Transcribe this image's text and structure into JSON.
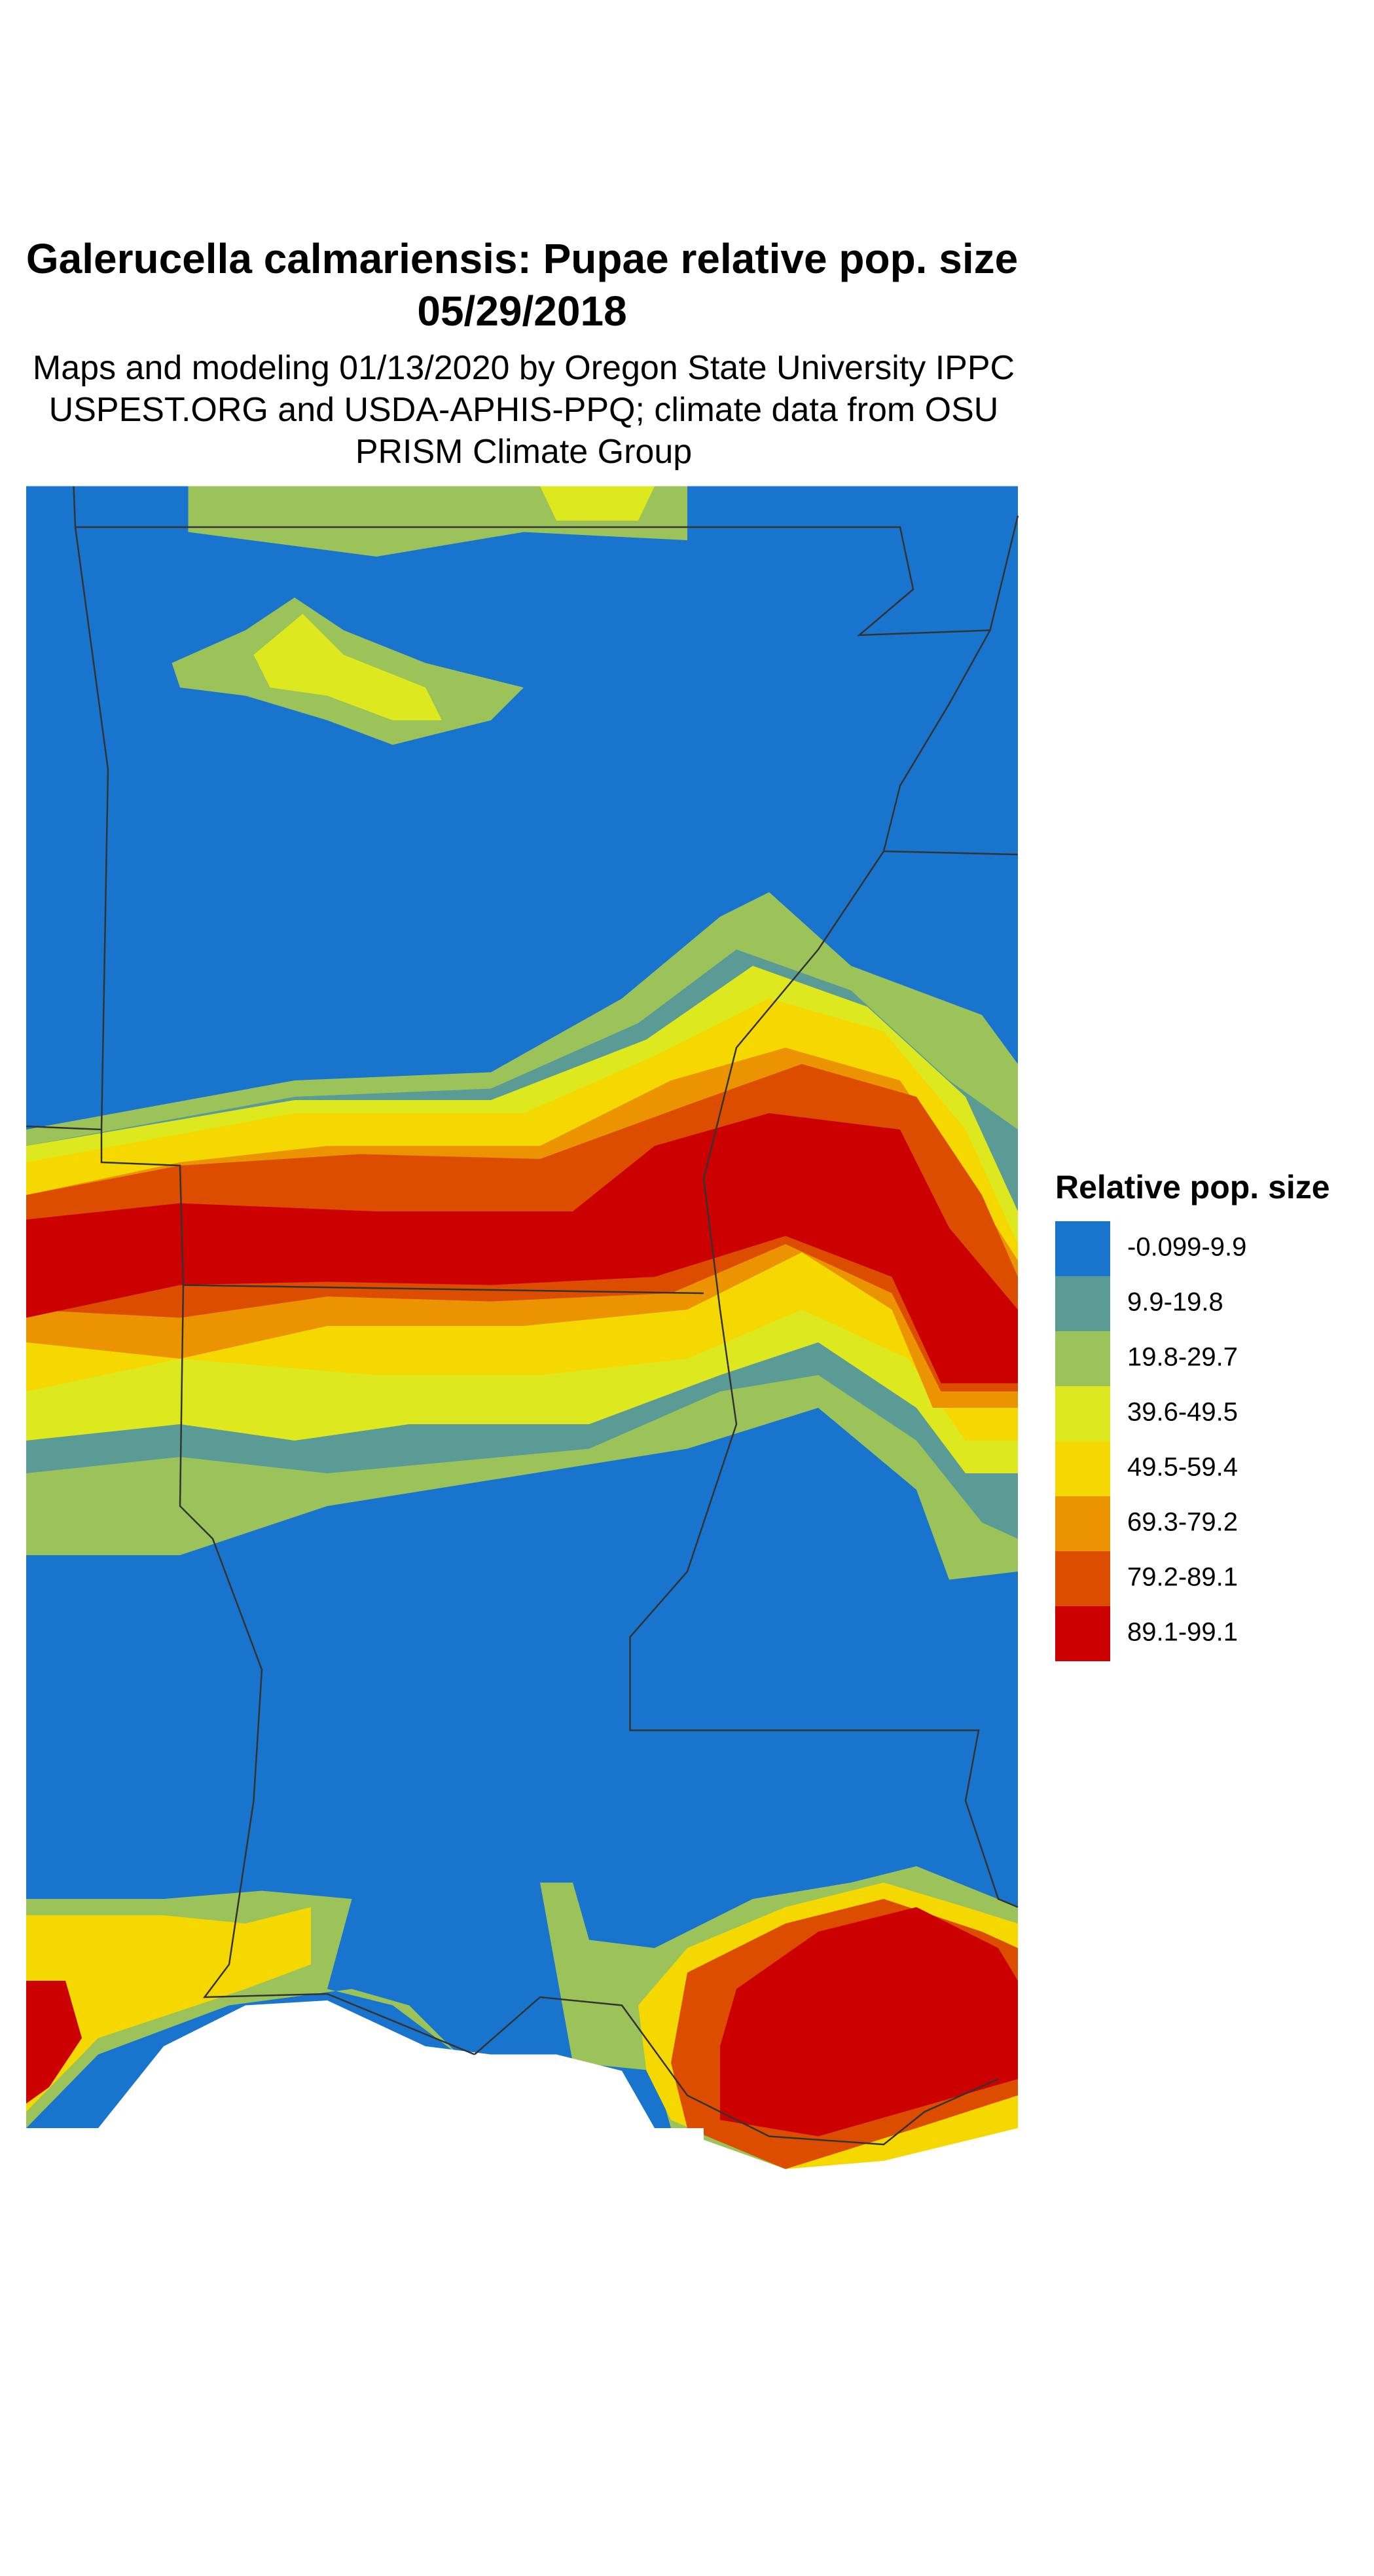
{
  "title": "Galerucella calmariensis: Pupae relative pop. size 05/29/2018",
  "subtitle": "Maps and modeling 01/13/2020 by Oregon State University IPPC USPEST.ORG and USDA-APHIS-PPQ; climate data from OSU PRISM Climate Group",
  "legend": {
    "title": "Relative pop. size",
    "entries": [
      {
        "label": "-0.099-9.9",
        "color": "#1874cd"
      },
      {
        "label": "9.9-19.8",
        "color": "#5a9b96"
      },
      {
        "label": "19.8-29.7",
        "color": "#9cc35a"
      },
      {
        "label": "39.6-49.5",
        "color": "#dde81e"
      },
      {
        "label": "49.5-59.4",
        "color": "#f5d800"
      },
      {
        "label": "69.3-79.2",
        "color": "#eb9300"
      },
      {
        "label": "79.2-89.1",
        "color": "#dc4d00"
      },
      {
        "label": "89.1-99.1",
        "color": "#cd0000"
      }
    ]
  }
}
